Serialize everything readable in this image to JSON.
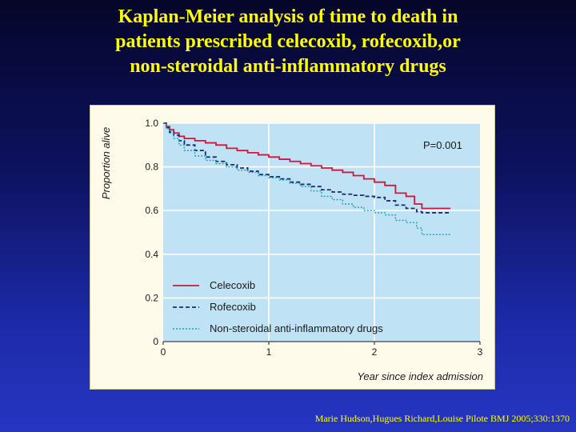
{
  "slide": {
    "title_lines": [
      "Kaplan-Meier analysis of time to death in",
      "patients prescribed celecoxib, rofecoxib,or",
      "non-steroidal anti-inflammatory drugs"
    ],
    "citation": "Marie Hudson,Hugues Richard,Louise Pilote BMJ 2005;330:1370"
  },
  "colors": {
    "plot_bg": "#bfe3f4",
    "grid": "#ffffff",
    "celecoxib": "#d0163a",
    "rofecoxib": "#1e2b6e",
    "nsaids": "#1f9fb5"
  },
  "chart_data": {
    "type": "line",
    "xlabel": "Year since index admission",
    "ylabel": "Proportion alive",
    "xlim": [
      0,
      3
    ],
    "ylim": [
      0,
      1.0
    ],
    "x_ticks": [
      "0",
      "1",
      "2",
      "3"
    ],
    "y_ticks": [
      "0",
      "0.2",
      "0.4",
      "0.6",
      "0.8",
      "1.0"
    ],
    "grid": true,
    "legend_position": "bottom-left",
    "annotation": "P=0.001",
    "series": [
      {
        "name": "Celecoxib",
        "style": "solid",
        "points": [
          [
            0,
            1.0
          ],
          [
            0.03,
            0.985
          ],
          [
            0.06,
            0.97
          ],
          [
            0.1,
            0.955
          ],
          [
            0.15,
            0.94
          ],
          [
            0.2,
            0.93
          ],
          [
            0.3,
            0.92
          ],
          [
            0.4,
            0.91
          ],
          [
            0.5,
            0.9
          ],
          [
            0.6,
            0.885
          ],
          [
            0.7,
            0.875
          ],
          [
            0.8,
            0.865
          ],
          [
            0.9,
            0.855
          ],
          [
            1.0,
            0.845
          ],
          [
            1.1,
            0.835
          ],
          [
            1.2,
            0.825
          ],
          [
            1.3,
            0.815
          ],
          [
            1.4,
            0.805
          ],
          [
            1.5,
            0.795
          ],
          [
            1.6,
            0.785
          ],
          [
            1.7,
            0.775
          ],
          [
            1.8,
            0.76
          ],
          [
            1.9,
            0.745
          ],
          [
            2.0,
            0.73
          ],
          [
            2.1,
            0.715
          ],
          [
            2.2,
            0.68
          ],
          [
            2.3,
            0.665
          ],
          [
            2.38,
            0.63
          ],
          [
            2.45,
            0.61
          ],
          [
            2.72,
            0.61
          ]
        ]
      },
      {
        "name": "Rofecoxib",
        "style": "dashed",
        "points": [
          [
            0,
            1.0
          ],
          [
            0.03,
            0.98
          ],
          [
            0.06,
            0.96
          ],
          [
            0.1,
            0.945
          ],
          [
            0.15,
            0.92
          ],
          [
            0.2,
            0.9
          ],
          [
            0.3,
            0.875
          ],
          [
            0.4,
            0.845
          ],
          [
            0.5,
            0.825
          ],
          [
            0.6,
            0.81
          ],
          [
            0.7,
            0.795
          ],
          [
            0.8,
            0.78
          ],
          [
            0.9,
            0.765
          ],
          [
            1.0,
            0.755
          ],
          [
            1.1,
            0.745
          ],
          [
            1.2,
            0.73
          ],
          [
            1.3,
            0.72
          ],
          [
            1.4,
            0.71
          ],
          [
            1.5,
            0.695
          ],
          [
            1.6,
            0.685
          ],
          [
            1.7,
            0.675
          ],
          [
            1.8,
            0.67
          ],
          [
            1.9,
            0.665
          ],
          [
            2.0,
            0.66
          ],
          [
            2.1,
            0.645
          ],
          [
            2.2,
            0.625
          ],
          [
            2.3,
            0.61
          ],
          [
            2.4,
            0.595
          ],
          [
            2.45,
            0.59
          ],
          [
            2.72,
            0.59
          ]
        ]
      },
      {
        "name": "Non-steroidal anti-inflammatory drugs",
        "style": "dotted",
        "points": [
          [
            0,
            1.0
          ],
          [
            0.03,
            0.975
          ],
          [
            0.06,
            0.955
          ],
          [
            0.1,
            0.93
          ],
          [
            0.15,
            0.9
          ],
          [
            0.2,
            0.875
          ],
          [
            0.3,
            0.85
          ],
          [
            0.4,
            0.83
          ],
          [
            0.5,
            0.815
          ],
          [
            0.6,
            0.8
          ],
          [
            0.7,
            0.785
          ],
          [
            0.8,
            0.775
          ],
          [
            0.9,
            0.76
          ],
          [
            1.0,
            0.75
          ],
          [
            1.1,
            0.74
          ],
          [
            1.2,
            0.725
          ],
          [
            1.3,
            0.71
          ],
          [
            1.4,
            0.69
          ],
          [
            1.5,
            0.665
          ],
          [
            1.6,
            0.65
          ],
          [
            1.7,
            0.63
          ],
          [
            1.8,
            0.615
          ],
          [
            1.9,
            0.6
          ],
          [
            2.0,
            0.59
          ],
          [
            2.1,
            0.58
          ],
          [
            2.2,
            0.555
          ],
          [
            2.3,
            0.545
          ],
          [
            2.4,
            0.52
          ],
          [
            2.45,
            0.49
          ],
          [
            2.72,
            0.49
          ]
        ]
      }
    ]
  }
}
